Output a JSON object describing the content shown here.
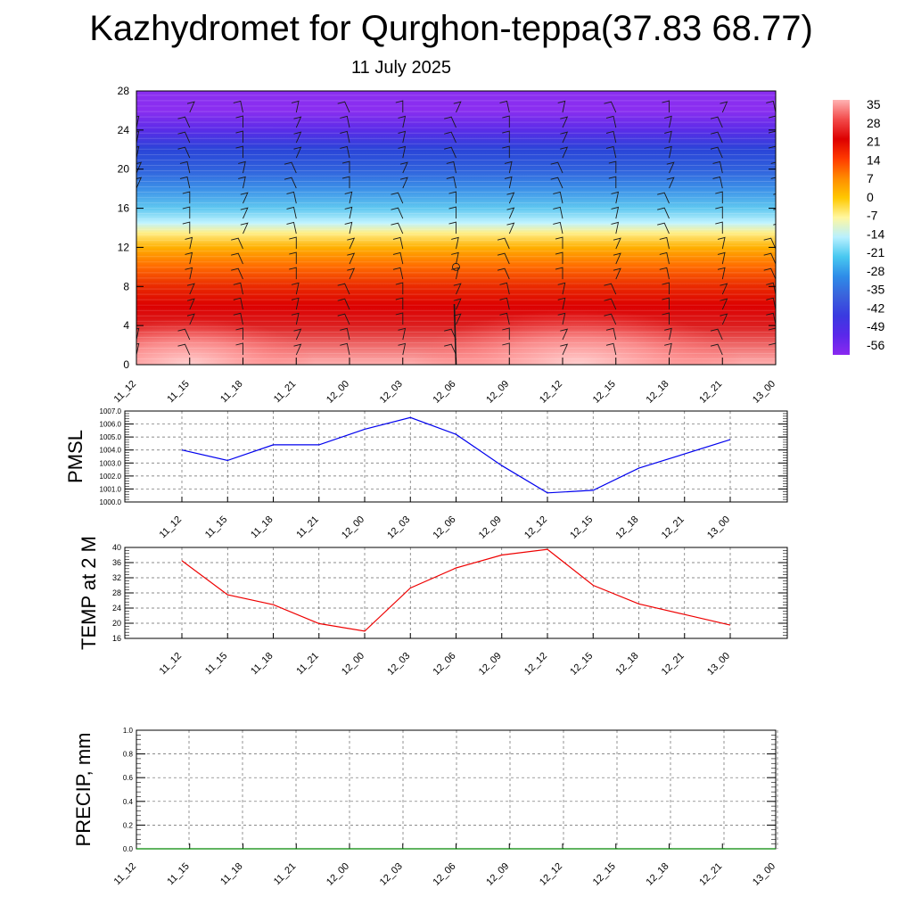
{
  "header": {
    "title": "Kazhydromet for Qurghon-teppa(37.83 68.77)",
    "subtitle": "11 July 2025"
  },
  "chart_data": [
    {
      "type": "heatmap",
      "description_role": "vertical cross-section, temperature shading with wind barbs",
      "x_ticks": [
        "11_12",
        "11_15",
        "11_18",
        "11_21",
        "12_00",
        "12_03",
        "12_06",
        "12_09",
        "12_12",
        "12_15",
        "12_18",
        "12_21",
        "13_00"
      ],
      "y_ticks": [
        0,
        4,
        8,
        12,
        16,
        20,
        24,
        28
      ],
      "ylim": [
        0,
        28
      ],
      "colorbar": {
        "labels": [
          "35",
          "28",
          "21",
          "14",
          "7",
          "0",
          "-7",
          "-14",
          "-21",
          "-28",
          "-35",
          "-42",
          "-49",
          "-56"
        ],
        "colors": [
          "#ffb3b3",
          "#f24a4a",
          "#dd0000",
          "#ff3a00",
          "#ff8c00",
          "#ffc800",
          "#fff7a0",
          "#b8f0ff",
          "#48c8f0",
          "#2e8ce8",
          "#3a62dc",
          "#3a3ae0",
          "#5a28ea",
          "#8a28f0"
        ]
      },
      "levels_y": [
        0,
        2,
        4,
        6,
        8,
        10,
        12,
        13.5,
        14.5,
        16,
        18,
        20,
        22,
        24,
        26,
        28
      ],
      "levels_colors": [
        "#ffb0b0",
        "#ee6a6a",
        "#dc1e1e",
        "#dc0000",
        "#ea2a00",
        "#ff6a00",
        "#ffb000",
        "#fff08a",
        "#c0f4ff",
        "#60c8f0",
        "#3c90e8",
        "#3060dc",
        "#2a44d8",
        "#5a2ce8",
        "#8a2ef0",
        "#8a2ef0"
      ]
    },
    {
      "type": "line",
      "ylabel": "PMSL",
      "x": [
        "11_12",
        "11_15",
        "11_18",
        "11_21",
        "12_00",
        "12_03",
        "12_06",
        "12_09",
        "12_12",
        "12_15",
        "12_18",
        "12_21",
        "13_00"
      ],
      "series": [
        {
          "values": [
            1004.0,
            1003.2,
            1004.4,
            1004.4,
            1005.6,
            1006.5,
            1005.2,
            1002.8,
            1000.7,
            1000.9,
            1002.6,
            1003.7,
            1004.8
          ],
          "color": "#0000ee"
        }
      ],
      "ylim": [
        1000.0,
        1007.0
      ],
      "y_ticks": [
        "1000.0",
        "1001.0",
        "1002.0",
        "1003.0",
        "1004.0",
        "1005.0",
        "1006.0",
        "1007.0"
      ]
    },
    {
      "type": "line",
      "ylabel": "TEMP at 2 M",
      "x": [
        "11_12",
        "11_15",
        "11_18",
        "11_21",
        "12_00",
        "12_03",
        "12_06",
        "12_09",
        "12_12",
        "12_15",
        "12_18",
        "12_21",
        "13_00"
      ],
      "series": [
        {
          "values": [
            36.5,
            27.5,
            24.9,
            19.9,
            17.9,
            29.3,
            34.6,
            38.0,
            39.5,
            30.0,
            25.1,
            22.3,
            19.5
          ],
          "color": "#ee0000"
        }
      ],
      "ylim": [
        16,
        40
      ],
      "y_ticks": [
        "16",
        "20",
        "24",
        "28",
        "32",
        "36",
        "40"
      ]
    },
    {
      "type": "line",
      "ylabel": "PRECIP, mm",
      "x": [
        "11_12",
        "11_15",
        "11_18",
        "11_21",
        "12_00",
        "12_03",
        "12_06",
        "12_09",
        "12_12",
        "12_15",
        "12_18",
        "12_21",
        "13_00"
      ],
      "series": [
        {
          "values": [
            0,
            0,
            0,
            0,
            0,
            0,
            0,
            0,
            0,
            0,
            0,
            0,
            0
          ],
          "color": "#008800"
        }
      ],
      "ylim": [
        0.0,
        1.0
      ],
      "y_ticks": [
        "0.0",
        "0.2",
        "0.4",
        "0.6",
        "0.8",
        "1.0"
      ]
    }
  ]
}
